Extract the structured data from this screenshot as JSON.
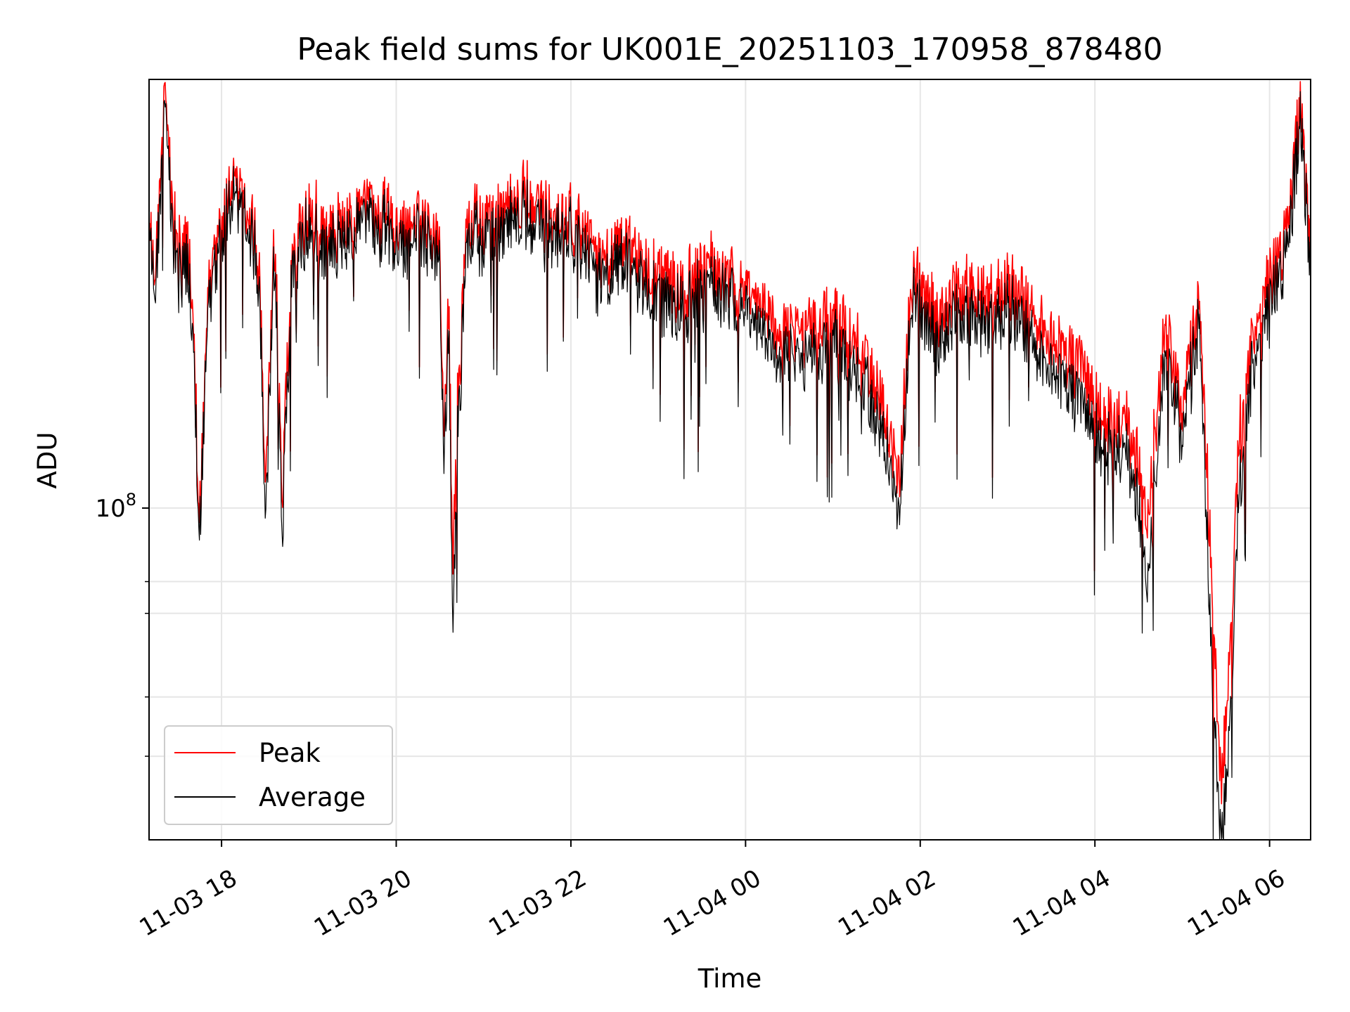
{
  "chart_data": {
    "type": "line",
    "title": "Peak field sums for UK001E_20251103_170958_878480",
    "xlabel": "Time",
    "ylabel": "ADU",
    "yscale": "log",
    "ylim": [
      20000000,
      800000000
    ],
    "xlim_hours": [
      17.17,
      30.47
    ],
    "grid": true,
    "legend_location": "lower-left",
    "x_ticks": [
      {
        "label": "11-03 18",
        "hour": 18
      },
      {
        "label": "11-03 20",
        "hour": 20
      },
      {
        "label": "11-03 22",
        "hour": 22
      },
      {
        "label": "11-04 00",
        "hour": 24
      },
      {
        "label": "11-04 02",
        "hour": 26
      },
      {
        "label": "11-04 04",
        "hour": 28
      },
      {
        "label": "11-04 06",
        "hour": 30
      }
    ],
    "y_major_ticks": [
      {
        "value": 100000000,
        "base": "10",
        "exp": "8"
      }
    ],
    "y_minor_ticks": [
      30000000,
      40000000,
      60000000,
      70000000
    ],
    "series": [
      {
        "name": "Peak",
        "color": "#ff0000",
        "x_hours": [
          17.17,
          17.25,
          17.35,
          17.45,
          17.55,
          17.6,
          17.65,
          17.75,
          17.85,
          18.0,
          18.15,
          18.3,
          18.4,
          18.45,
          18.5,
          18.6,
          18.7,
          18.8,
          19.0,
          19.2,
          19.5,
          19.8,
          20.0,
          20.3,
          20.5,
          20.55,
          20.6,
          20.65,
          20.7,
          20.8,
          20.9,
          21.0,
          21.2,
          21.5,
          21.8,
          22.0,
          22.3,
          22.6,
          23.0,
          23.3,
          23.6,
          24.0,
          24.3,
          24.6,
          25.0,
          25.3,
          25.6,
          25.75,
          25.9,
          26.2,
          26.5,
          26.8,
          27.0,
          27.3,
          27.6,
          27.8,
          28.0,
          28.2,
          28.35,
          28.5,
          28.6,
          28.8,
          29.0,
          29.2,
          29.35,
          29.45,
          29.55,
          29.65,
          29.8,
          30.0,
          30.2,
          30.35,
          30.47
        ],
        "values": [
          400000000,
          330000000,
          780000000,
          400000000,
          330000000,
          360000000,
          300000000,
          98000000,
          290000000,
          410000000,
          500000000,
          430000000,
          360000000,
          260000000,
          100000000,
          390000000,
          110000000,
          320000000,
          440000000,
          380000000,
          410000000,
          440000000,
          390000000,
          400000000,
          350000000,
          140000000,
          270000000,
          70000000,
          160000000,
          360000000,
          410000000,
          380000000,
          420000000,
          460000000,
          390000000,
          420000000,
          330000000,
          360000000,
          300000000,
          290000000,
          330000000,
          290000000,
          250000000,
          230000000,
          250000000,
          220000000,
          160000000,
          110000000,
          310000000,
          250000000,
          290000000,
          270000000,
          300000000,
          250000000,
          220000000,
          200000000,
          170000000,
          150000000,
          160000000,
          120000000,
          98000000,
          240000000,
          160000000,
          280000000,
          60000000,
          25000000,
          55000000,
          140000000,
          220000000,
          300000000,
          380000000,
          720000000,
          350000000
        ]
      },
      {
        "name": "Average",
        "color": "#000000",
        "x_hours": [
          17.17,
          17.25,
          17.35,
          17.45,
          17.55,
          17.6,
          17.65,
          17.75,
          17.85,
          18.0,
          18.15,
          18.3,
          18.4,
          18.45,
          18.5,
          18.6,
          18.7,
          18.8,
          19.0,
          19.2,
          19.5,
          19.8,
          20.0,
          20.3,
          20.5,
          20.55,
          20.6,
          20.65,
          20.7,
          20.8,
          20.9,
          21.0,
          21.2,
          21.5,
          21.8,
          22.0,
          22.3,
          22.6,
          23.0,
          23.3,
          23.6,
          24.0,
          24.3,
          24.6,
          25.0,
          25.3,
          25.6,
          25.75,
          25.9,
          26.2,
          26.5,
          26.8,
          27.0,
          27.3,
          27.6,
          27.8,
          28.0,
          28.2,
          28.35,
          28.5,
          28.6,
          28.8,
          29.0,
          29.2,
          29.35,
          29.45,
          29.55,
          29.65,
          29.8,
          30.0,
          30.2,
          30.35,
          30.47
        ],
        "values": [
          380000000,
          310000000,
          720000000,
          370000000,
          300000000,
          330000000,
          270000000,
          92000000,
          270000000,
          380000000,
          460000000,
          400000000,
          330000000,
          240000000,
          84000000,
          360000000,
          95000000,
          300000000,
          400000000,
          350000000,
          380000000,
          410000000,
          360000000,
          370000000,
          320000000,
          120000000,
          240000000,
          52000000,
          140000000,
          330000000,
          380000000,
          350000000,
          390000000,
          420000000,
          360000000,
          390000000,
          300000000,
          330000000,
          270000000,
          260000000,
          300000000,
          260000000,
          220000000,
          200000000,
          220000000,
          190000000,
          140000000,
          92000000,
          280000000,
          220000000,
          260000000,
          240000000,
          270000000,
          220000000,
          190000000,
          170000000,
          145000000,
          130000000,
          140000000,
          100000000,
          72000000,
          210000000,
          140000000,
          250000000,
          40000000,
          19000000,
          38000000,
          110000000,
          190000000,
          270000000,
          340000000,
          650000000,
          320000000
        ]
      }
    ]
  }
}
